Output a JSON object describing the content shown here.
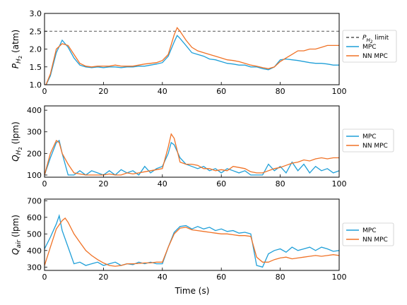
{
  "chart_data": [
    {
      "type": "line",
      "xlabel": "",
      "ylabel": "P_H2 (atm)",
      "ylabel_main": "P",
      "ylabel_sub": "H",
      "ylabel_subsub": "2",
      "ylabel_unit": " (atm)",
      "xlim": [
        0,
        100
      ],
      "ylim": [
        1.0,
        3.0
      ],
      "xticks": [
        "0",
        "20",
        "40",
        "60",
        "80",
        "100"
      ],
      "yticks": [
        "1.0",
        "1.5",
        "2.0",
        "2.5",
        "3.0"
      ],
      "reference_line": {
        "y": 2.5,
        "label_main": "P",
        "label_sub": "H",
        "label_subsub": "2",
        "label_rest": " limit",
        "color": "#555555"
      },
      "series": [
        {
          "name": "MPC",
          "color": "#1f9fd8",
          "x": [
            0,
            2,
            4,
            6,
            8,
            10,
            12,
            14,
            16,
            18,
            20,
            22,
            24,
            26,
            28,
            30,
            32,
            34,
            36,
            38,
            40,
            42,
            44,
            45,
            46,
            48,
            50,
            52,
            54,
            56,
            58,
            60,
            62,
            64,
            66,
            68,
            70,
            72,
            74,
            76,
            78,
            80,
            82,
            84,
            86,
            88,
            90,
            92,
            94,
            96,
            98,
            100
          ],
          "y": [
            0.9,
            1.25,
            1.9,
            2.25,
            2.05,
            1.75,
            1.55,
            1.5,
            1.48,
            1.5,
            1.48,
            1.5,
            1.5,
            1.48,
            1.5,
            1.5,
            1.52,
            1.52,
            1.55,
            1.58,
            1.62,
            1.8,
            2.2,
            2.38,
            2.3,
            2.1,
            1.9,
            1.85,
            1.8,
            1.72,
            1.7,
            1.65,
            1.6,
            1.58,
            1.55,
            1.55,
            1.5,
            1.5,
            1.45,
            1.42,
            1.5,
            1.7,
            1.72,
            1.7,
            1.68,
            1.65,
            1.62,
            1.6,
            1.6,
            1.58,
            1.55,
            1.55
          ]
        },
        {
          "name": "NN MPC",
          "color": "#f07226",
          "x": [
            0,
            2,
            4,
            6,
            8,
            10,
            12,
            14,
            16,
            18,
            20,
            22,
            24,
            26,
            28,
            30,
            32,
            34,
            36,
            38,
            40,
            42,
            44,
            45,
            46,
            48,
            50,
            52,
            54,
            56,
            58,
            60,
            62,
            64,
            66,
            68,
            70,
            72,
            74,
            76,
            78,
            80,
            82,
            84,
            86,
            88,
            90,
            92,
            94,
            96,
            98,
            100
          ],
          "y": [
            0.9,
            1.3,
            2.0,
            2.15,
            2.1,
            1.85,
            1.6,
            1.52,
            1.5,
            1.52,
            1.52,
            1.52,
            1.55,
            1.52,
            1.52,
            1.52,
            1.55,
            1.58,
            1.6,
            1.62,
            1.68,
            1.85,
            2.4,
            2.6,
            2.5,
            2.25,
            2.05,
            1.95,
            1.9,
            1.85,
            1.8,
            1.75,
            1.7,
            1.68,
            1.65,
            1.6,
            1.55,
            1.52,
            1.48,
            1.45,
            1.5,
            1.65,
            1.75,
            1.85,
            1.95,
            1.95,
            2.0,
            2.0,
            2.05,
            2.1,
            2.1,
            2.1
          ]
        }
      ],
      "legend": "right"
    },
    {
      "type": "line",
      "xlabel": "",
      "ylabel": "Q_H2 (lpm)",
      "ylabel_main": "Q",
      "ylabel_sub": "H",
      "ylabel_subsub": "2",
      "ylabel_unit": " (lpm)",
      "xlim": [
        0,
        100
      ],
      "ylim": [
        90,
        420
      ],
      "xticks": [
        "0",
        "20",
        "40",
        "60",
        "80",
        "100"
      ],
      "yticks": [
        "100",
        "200",
        "300",
        "400"
      ],
      "series": [
        {
          "name": "MPC",
          "color": "#1f9fd8",
          "x": [
            0,
            2,
            4,
            5,
            6,
            8,
            10,
            12,
            14,
            16,
            18,
            20,
            22,
            24,
            26,
            28,
            30,
            32,
            34,
            36,
            38,
            40,
            42,
            43,
            44,
            46,
            48,
            50,
            52,
            54,
            56,
            58,
            60,
            62,
            64,
            66,
            68,
            70,
            72,
            74,
            76,
            78,
            80,
            82,
            84,
            86,
            88,
            90,
            92,
            94,
            96,
            98,
            100
          ],
          "y": [
            100,
            180,
            250,
            260,
            200,
            100,
            100,
            120,
            100,
            120,
            110,
            100,
            120,
            100,
            125,
            110,
            120,
            100,
            140,
            110,
            130,
            140,
            200,
            250,
            240,
            180,
            150,
            140,
            130,
            140,
            120,
            130,
            110,
            130,
            120,
            110,
            120,
            100,
            100,
            100,
            150,
            120,
            140,
            110,
            160,
            120,
            150,
            110,
            140,
            120,
            130,
            110,
            120
          ]
        },
        {
          "name": "NN MPC",
          "color": "#f07226",
          "x": [
            0,
            2,
            4,
            5,
            6,
            8,
            10,
            12,
            14,
            16,
            18,
            20,
            22,
            24,
            26,
            28,
            30,
            32,
            34,
            36,
            38,
            40,
            42,
            43,
            44,
            46,
            48,
            50,
            52,
            54,
            56,
            58,
            60,
            62,
            64,
            66,
            68,
            70,
            72,
            74,
            76,
            78,
            80,
            82,
            84,
            86,
            88,
            90,
            92,
            94,
            96,
            98,
            100
          ],
          "y": [
            100,
            200,
            260,
            250,
            200,
            150,
            110,
            105,
            100,
            100,
            100,
            100,
            105,
            100,
            100,
            110,
            105,
            110,
            115,
            120,
            125,
            130,
            230,
            290,
            270,
            160,
            150,
            150,
            145,
            130,
            130,
            120,
            125,
            120,
            140,
            135,
            130,
            115,
            110,
            110,
            120,
            130,
            135,
            145,
            155,
            160,
            170,
            165,
            175,
            180,
            175,
            180,
            180
          ]
        }
      ],
      "legend": "right"
    },
    {
      "type": "line",
      "xlabel": "Time (s)",
      "ylabel": "Q_air (lpm)",
      "ylabel_main": "Q",
      "ylabel_sub": "air",
      "ylabel_subsub": "",
      "ylabel_unit": " (lpm)",
      "xlim": [
        0,
        100
      ],
      "ylim": [
        280,
        710
      ],
      "xticks": [
        "0",
        "20",
        "40",
        "60",
        "80",
        "100"
      ],
      "yticks": [
        "300",
        "400",
        "500",
        "600",
        "700"
      ],
      "series": [
        {
          "name": "MPC",
          "color": "#1f9fd8",
          "x": [
            0,
            2,
            4,
            5,
            6,
            8,
            10,
            12,
            14,
            16,
            18,
            20,
            22,
            24,
            26,
            28,
            30,
            32,
            34,
            36,
            38,
            40,
            42,
            44,
            46,
            48,
            50,
            52,
            54,
            56,
            58,
            60,
            62,
            64,
            66,
            68,
            70,
            72,
            74,
            76,
            78,
            80,
            82,
            84,
            86,
            88,
            90,
            92,
            94,
            96,
            98,
            100
          ],
          "y": [
            410,
            480,
            560,
            610,
            520,
            420,
            320,
            330,
            310,
            320,
            330,
            310,
            320,
            330,
            310,
            320,
            315,
            330,
            320,
            330,
            320,
            320,
            420,
            510,
            545,
            550,
            530,
            545,
            530,
            540,
            520,
            530,
            515,
            520,
            505,
            510,
            500,
            310,
            300,
            380,
            400,
            410,
            390,
            420,
            400,
            410,
            420,
            400,
            420,
            410,
            395,
            400
          ]
        },
        {
          "name": "NN MPC",
          "color": "#f07226",
          "x": [
            0,
            2,
            4,
            6,
            7,
            8,
            10,
            12,
            14,
            16,
            18,
            20,
            22,
            24,
            26,
            28,
            30,
            32,
            34,
            36,
            38,
            40,
            42,
            44,
            46,
            48,
            50,
            52,
            54,
            56,
            58,
            60,
            62,
            64,
            66,
            68,
            70,
            72,
            74,
            76,
            78,
            80,
            82,
            84,
            86,
            88,
            90,
            92,
            94,
            96,
            98,
            100
          ],
          "y": [
            310,
            420,
            530,
            580,
            595,
            570,
            500,
            450,
            400,
            370,
            345,
            325,
            310,
            305,
            310,
            320,
            320,
            322,
            325,
            325,
            330,
            330,
            420,
            500,
            535,
            540,
            525,
            520,
            515,
            510,
            505,
            500,
            500,
            495,
            490,
            490,
            485,
            360,
            330,
            330,
            345,
            355,
            360,
            350,
            355,
            360,
            365,
            370,
            365,
            370,
            375,
            370
          ]
        }
      ],
      "legend": "right"
    }
  ]
}
